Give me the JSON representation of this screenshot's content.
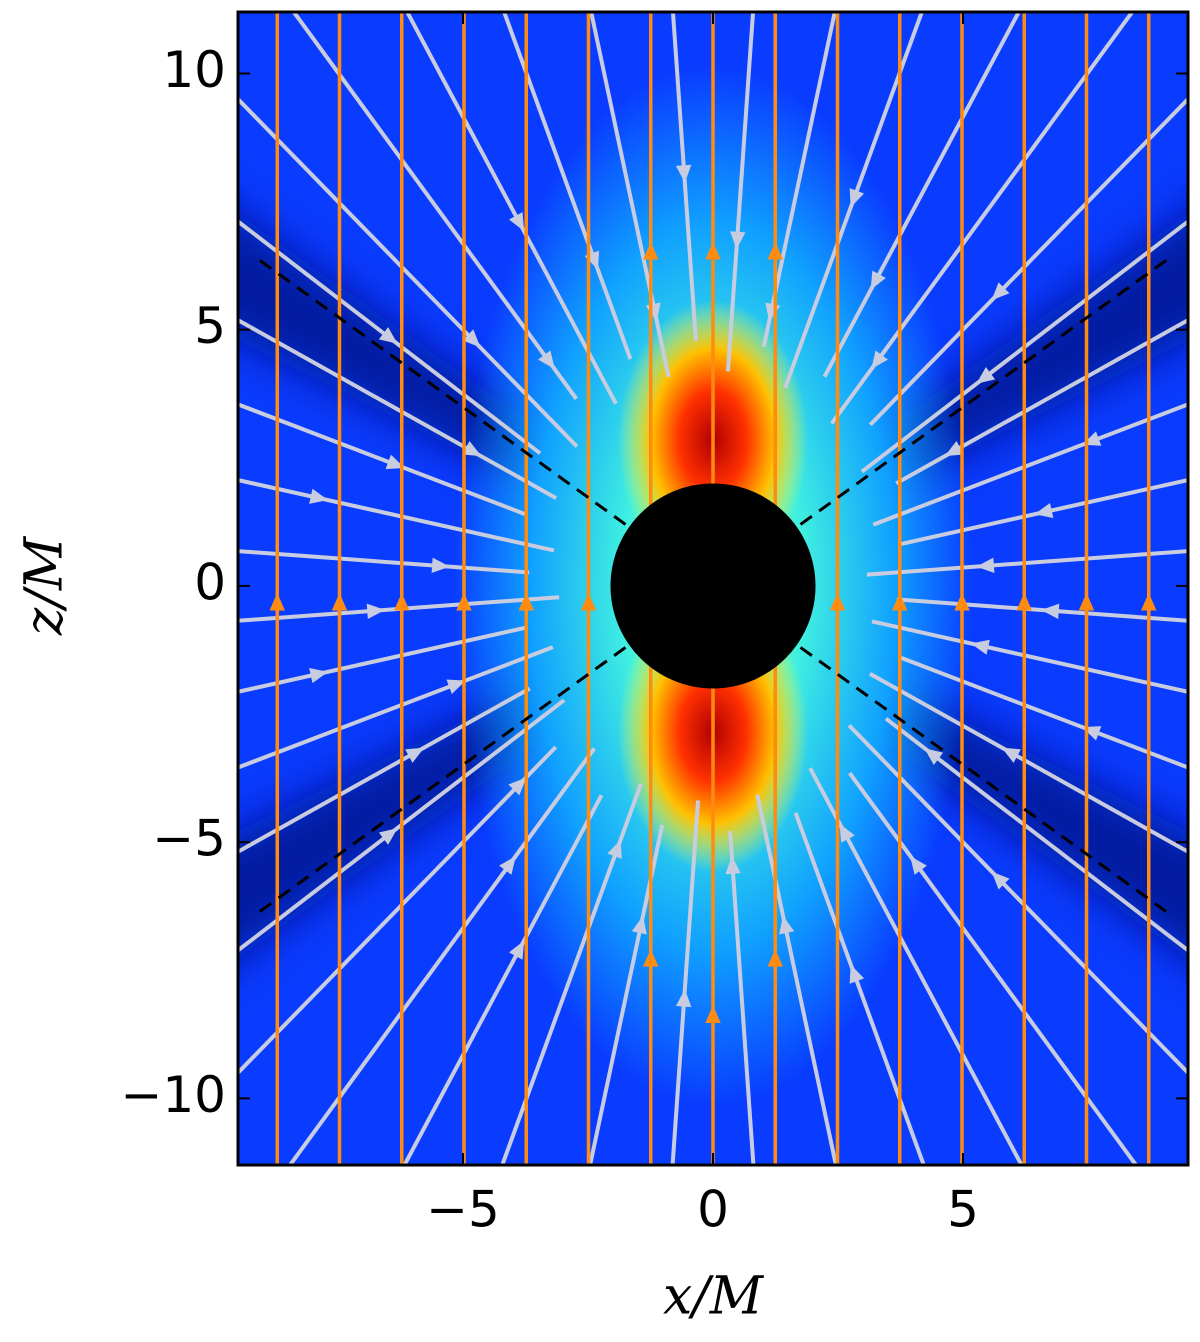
{
  "chart_data": {
    "type": "streamplot",
    "xlabel": "x/M",
    "ylabel": "z/M",
    "xlim": [
      -9.5,
      9.5
    ],
    "ylim": [
      -11.3,
      11.2
    ],
    "xticks": [
      {
        "value": -5,
        "label": "−5"
      },
      0,
      5
    ],
    "yticks": [
      {
        "value": -10,
        "label": "−10"
      },
      {
        "value": -5,
        "label": "−5"
      },
      0,
      5,
      10
    ],
    "grid": false
  }
}
